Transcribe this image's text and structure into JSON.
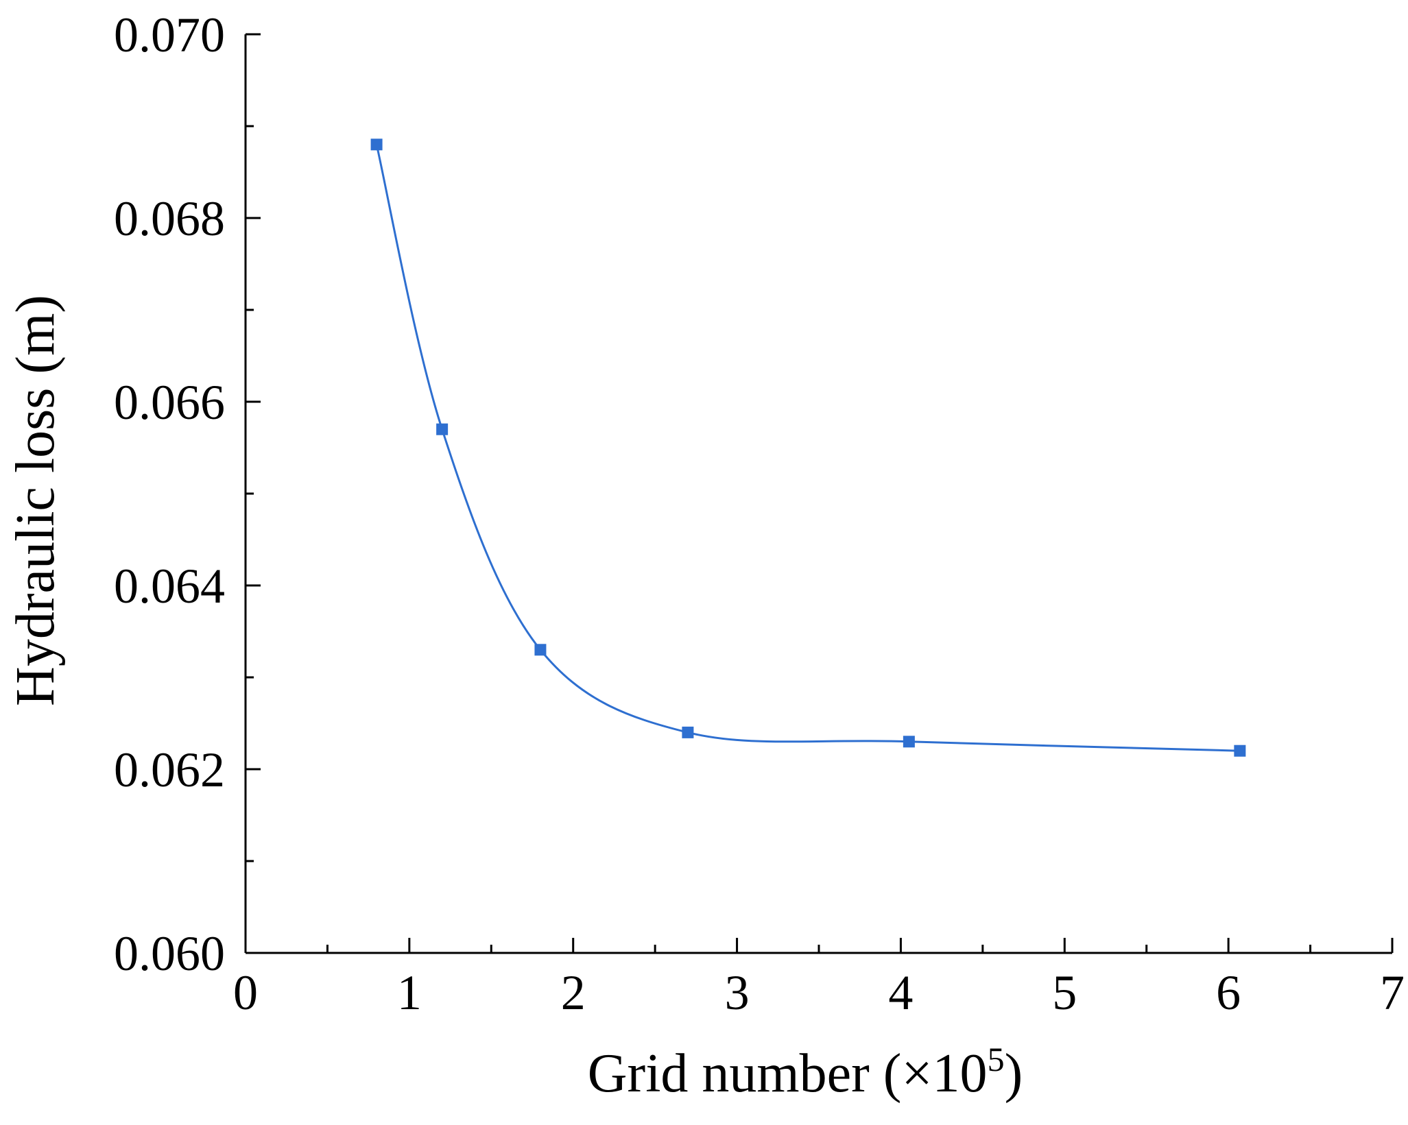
{
  "chart_data": {
    "type": "line",
    "xlabel": "Grid number (×10",
    "xlabel_exponent": "5",
    "xlabel_close": ")",
    "ylabel": "Hydraulic loss (m)",
    "xlim": [
      0,
      7
    ],
    "ylim": [
      0.06,
      0.07
    ],
    "x_ticks": [
      "0",
      "1",
      "2",
      "3",
      "4",
      "5",
      "6",
      "7"
    ],
    "y_ticks": [
      "0.060",
      "0.062",
      "0.064",
      "0.066",
      "0.068",
      "0.070"
    ],
    "x_tick_values": [
      0,
      1,
      2,
      3,
      4,
      5,
      6,
      7
    ],
    "y_tick_values": [
      0.06,
      0.062,
      0.064,
      0.066,
      0.068,
      0.07
    ],
    "grid": false,
    "legend": "none",
    "smooth": true,
    "marker": "square",
    "series": [
      {
        "color": "#2E6FD0",
        "x": [
          0.8,
          1.2,
          1.8,
          2.7,
          4.05,
          6.07
        ],
        "y": [
          0.0688,
          0.0657,
          0.0633,
          0.0624,
          0.0623,
          0.0622
        ]
      }
    ]
  }
}
